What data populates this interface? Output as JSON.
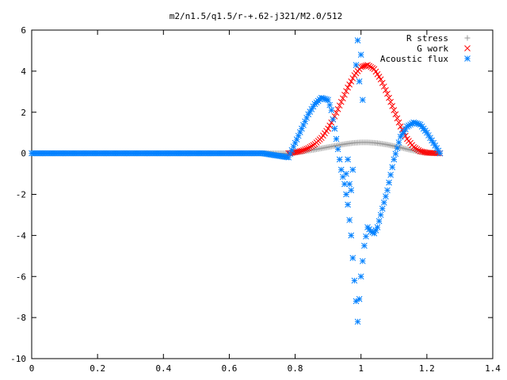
{
  "chart_data": {
    "type": "scatter",
    "title": "m2/n1.5/q1.5/r-+.62-j321/M2.0/512",
    "xlabel": "",
    "ylabel": "",
    "xlim": [
      0,
      1.4
    ],
    "ylim": [
      -10,
      6
    ],
    "x_ticks": [
      0,
      0.2,
      0.4,
      0.6,
      0.8,
      1,
      1.2,
      1.4
    ],
    "x_tick_labels": [
      "0",
      "0.2",
      "0.4",
      "0.6",
      "0.8",
      "1",
      "1.2",
      "1.4"
    ],
    "y_ticks": [
      -10,
      -8,
      -6,
      -4,
      -2,
      0,
      2,
      4,
      6
    ],
    "y_tick_labels": [
      "-10",
      "-8",
      "-6",
      "-4",
      "-2",
      "0",
      "2",
      "4",
      "6"
    ],
    "grid": false,
    "legend_position": "top-right",
    "series": [
      {
        "name": "R stress",
        "marker": "+",
        "color": "#999999",
        "x": [
          0.0,
          0.1,
          0.2,
          0.3,
          0.4,
          0.5,
          0.6,
          0.7,
          0.78,
          0.8,
          0.82,
          0.84,
          0.86,
          0.88,
          0.9,
          0.92,
          0.94,
          0.96,
          0.98,
          1.0,
          1.02,
          1.04,
          1.06,
          1.08,
          1.1,
          1.12,
          1.14,
          1.16,
          1.18,
          1.2,
          1.22,
          1.24
        ],
        "y": [
          0,
          0,
          0,
          0,
          0,
          0,
          0,
          0,
          0.0,
          0.04,
          0.08,
          0.13,
          0.18,
          0.24,
          0.3,
          0.36,
          0.42,
          0.47,
          0.51,
          0.53,
          0.53,
          0.51,
          0.47,
          0.42,
          0.35,
          0.28,
          0.2,
          0.13,
          0.07,
          0.03,
          0.01,
          0.0
        ]
      },
      {
        "name": "G work",
        "marker": "x",
        "color": "#ff0000",
        "x": [
          0.78,
          0.8,
          0.82,
          0.84,
          0.86,
          0.88,
          0.9,
          0.92,
          0.94,
          0.96,
          0.98,
          1.0,
          1.02,
          1.04,
          1.06,
          1.08,
          1.1,
          1.12,
          1.14,
          1.16,
          1.18,
          1.2,
          1.22,
          1.24
        ],
        "y": [
          0.0,
          0.05,
          0.12,
          0.25,
          0.45,
          0.75,
          1.2,
          1.8,
          2.5,
          3.2,
          3.8,
          4.2,
          4.3,
          4.1,
          3.6,
          2.9,
          2.1,
          1.3,
          0.7,
          0.3,
          0.1,
          0.03,
          0.01,
          0.0
        ]
      },
      {
        "name": "Acoustic flux",
        "marker": "*",
        "color": "#0080ff",
        "x": [
          0.0,
          0.1,
          0.2,
          0.3,
          0.4,
          0.5,
          0.6,
          0.7,
          0.78,
          0.8,
          0.82,
          0.84,
          0.86,
          0.88,
          0.9,
          0.91,
          0.92,
          0.93,
          0.94,
          0.95,
          0.96,
          0.97,
          0.98,
          0.99,
          1.0,
          1.01,
          1.02,
          1.03,
          1.04,
          1.05,
          1.06,
          1.08,
          1.1,
          1.12,
          1.14,
          1.16,
          1.18,
          1.2,
          1.22,
          1.24
        ],
        "y": [
          0,
          0,
          0,
          0,
          0,
          0,
          0,
          0,
          -0.2,
          0.5,
          1.2,
          1.9,
          2.4,
          2.7,
          2.6,
          2.1,
          1.2,
          0.2,
          -0.8,
          -1.5,
          -2.5,
          -4.0,
          -6.2,
          -8.2,
          -6.0,
          -4.5,
          -3.6,
          -3.8,
          -3.9,
          -3.6,
          -3.0,
          -1.8,
          -0.3,
          0.8,
          1.3,
          1.5,
          1.4,
          1.0,
          0.5,
          0.0
        ]
      }
    ],
    "scatter_outliers": {
      "name": "Acoustic flux",
      "x": [
        0.99,
        1.0,
        0.985,
        0.995,
        0.96,
        0.955,
        0.965,
        0.97,
        0.975,
        1.005
      ],
      "y": [
        5.5,
        4.8,
        4.3,
        3.5,
        -0.3,
        -1.0,
        -1.5,
        -1.8,
        -0.8,
        2.6
      ]
    }
  }
}
